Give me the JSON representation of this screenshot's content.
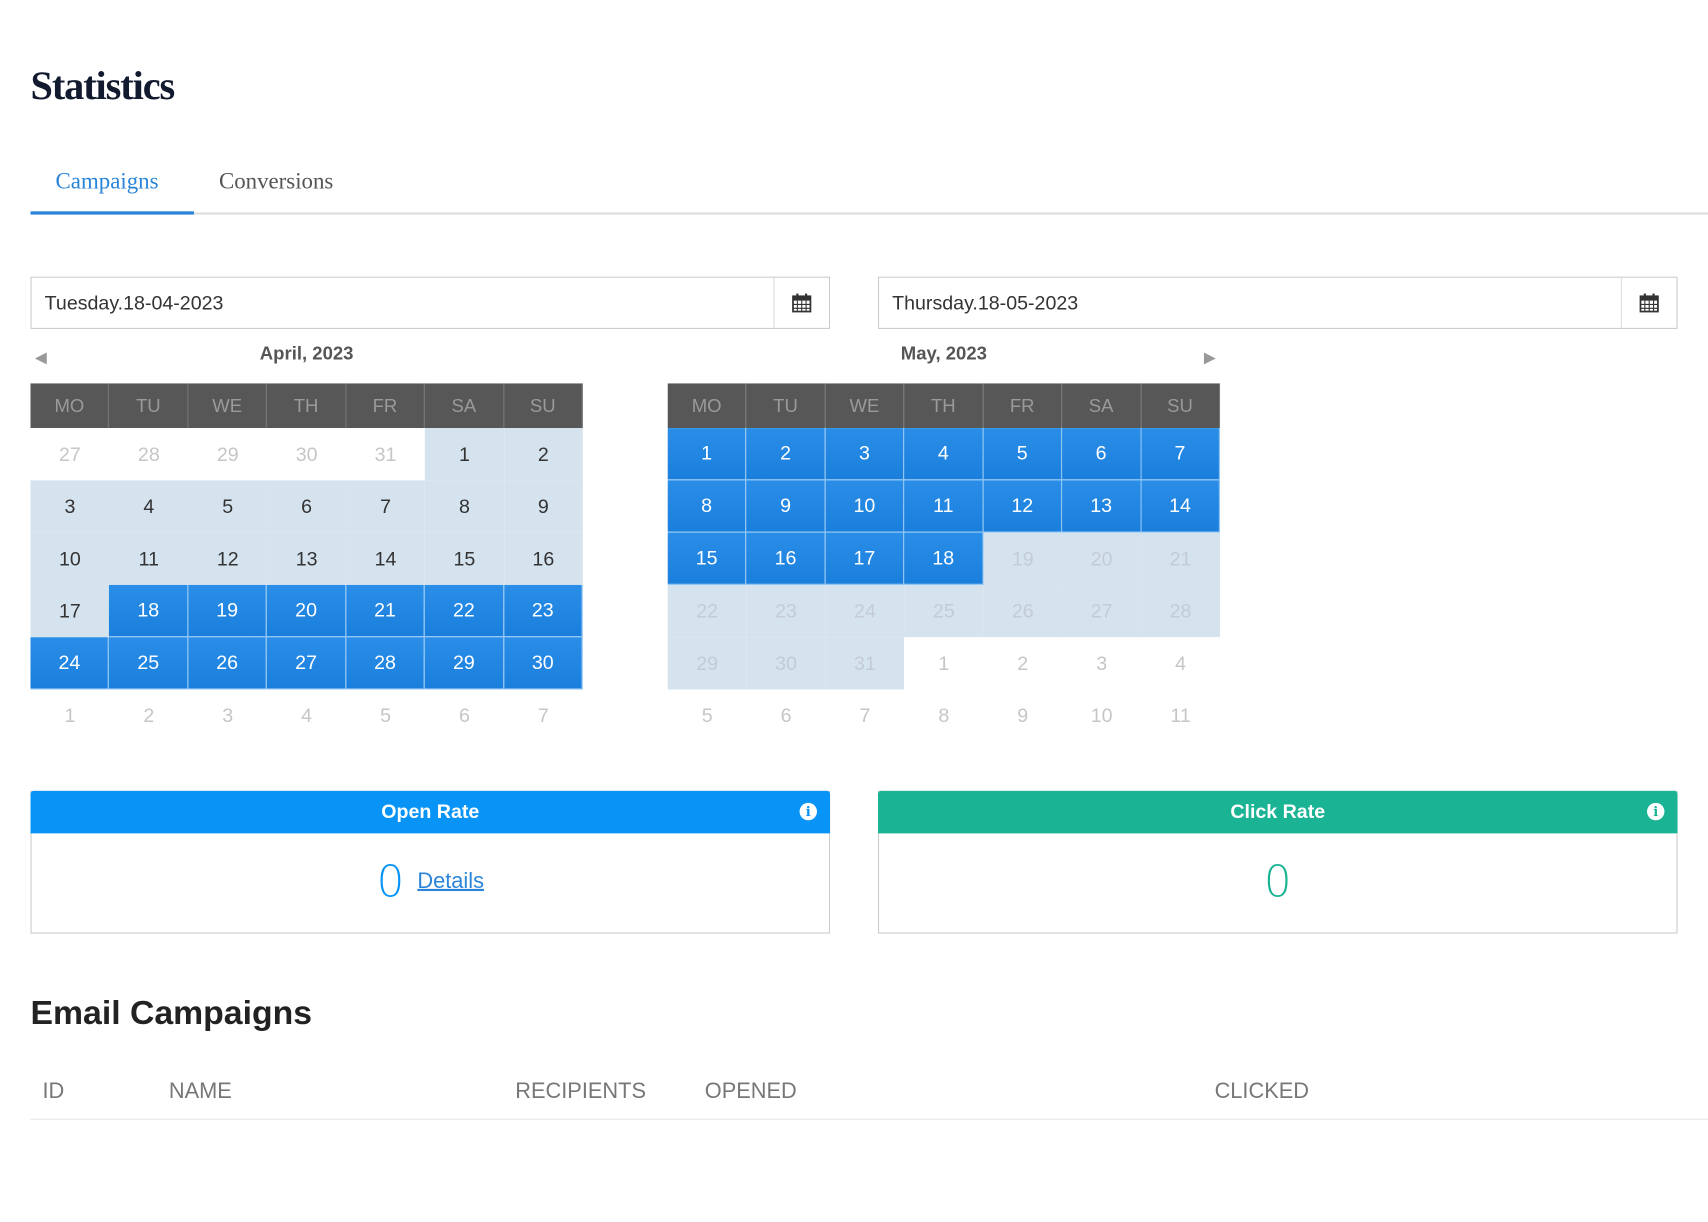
{
  "page": {
    "title": "Statistics"
  },
  "tabs": [
    {
      "label": "Campaigns",
      "active": true
    },
    {
      "label": "Conversions",
      "active": false
    }
  ],
  "date_from": {
    "value": "Tuesday.18-04-2023",
    "icon": "calendar-icon"
  },
  "date_to": {
    "value": "Thursday.18-05-2023",
    "icon": "calendar-icon"
  },
  "weekdays": [
    "MO",
    "TU",
    "WE",
    "TH",
    "FR",
    "SA",
    "SU"
  ],
  "calendars": [
    {
      "month": "April, 2023",
      "nav": "prev-arrow-icon",
      "days": [
        [
          "27",
          "other"
        ],
        [
          "28",
          "other"
        ],
        [
          "29",
          "other"
        ],
        [
          "30",
          "other"
        ],
        [
          "31",
          "other"
        ],
        [
          "1",
          "range"
        ],
        [
          "2",
          "range"
        ],
        [
          "3",
          "range"
        ],
        [
          "4",
          "range"
        ],
        [
          "5",
          "range"
        ],
        [
          "6",
          "range"
        ],
        [
          "7",
          "range"
        ],
        [
          "8",
          "range"
        ],
        [
          "9",
          "range"
        ],
        [
          "10",
          "range"
        ],
        [
          "11",
          "range"
        ],
        [
          "12",
          "range"
        ],
        [
          "13",
          "range"
        ],
        [
          "14",
          "range"
        ],
        [
          "15",
          "range"
        ],
        [
          "16",
          "range"
        ],
        [
          "17",
          "range"
        ],
        [
          "18",
          "selected"
        ],
        [
          "19",
          "selected"
        ],
        [
          "20",
          "selected"
        ],
        [
          "21",
          "selected"
        ],
        [
          "22",
          "selected"
        ],
        [
          "23",
          "selected"
        ],
        [
          "24",
          "selected"
        ],
        [
          "25",
          "selected"
        ],
        [
          "26",
          "selected"
        ],
        [
          "27",
          "selected"
        ],
        [
          "28",
          "selected"
        ],
        [
          "29",
          "selected"
        ],
        [
          "30",
          "selected"
        ],
        [
          "1",
          "other"
        ],
        [
          "2",
          "other"
        ],
        [
          "3",
          "other"
        ],
        [
          "4",
          "other"
        ],
        [
          "5",
          "other"
        ],
        [
          "6",
          "other"
        ],
        [
          "7",
          "other"
        ]
      ]
    },
    {
      "month": "May, 2023",
      "nav": "next-arrow-icon",
      "days": [
        [
          "1",
          "selected"
        ],
        [
          "2",
          "selected"
        ],
        [
          "3",
          "selected"
        ],
        [
          "4",
          "selected"
        ],
        [
          "5",
          "selected"
        ],
        [
          "6",
          "selected"
        ],
        [
          "7",
          "selected"
        ],
        [
          "8",
          "selected"
        ],
        [
          "9",
          "selected"
        ],
        [
          "10",
          "selected"
        ],
        [
          "11",
          "selected"
        ],
        [
          "12",
          "selected"
        ],
        [
          "13",
          "selected"
        ],
        [
          "14",
          "selected"
        ],
        [
          "15",
          "selected"
        ],
        [
          "16",
          "selected"
        ],
        [
          "17",
          "selected"
        ],
        [
          "18",
          "selected"
        ],
        [
          "19",
          "disabled"
        ],
        [
          "20",
          "disabled"
        ],
        [
          "21",
          "disabled"
        ],
        [
          "22",
          "disabled"
        ],
        [
          "23",
          "disabled"
        ],
        [
          "24",
          "disabled"
        ],
        [
          "25",
          "disabled"
        ],
        [
          "26",
          "disabled"
        ],
        [
          "27",
          "disabled"
        ],
        [
          "28",
          "disabled"
        ],
        [
          "29",
          "disabled"
        ],
        [
          "30",
          "disabled"
        ],
        [
          "31",
          "disabled"
        ],
        [
          "1",
          "other"
        ],
        [
          "2",
          "other"
        ],
        [
          "3",
          "other"
        ],
        [
          "4",
          "other"
        ],
        [
          "5",
          "other"
        ],
        [
          "6",
          "other"
        ],
        [
          "7",
          "other"
        ],
        [
          "8",
          "other"
        ],
        [
          "9",
          "other"
        ],
        [
          "10",
          "other"
        ],
        [
          "11",
          "other"
        ]
      ]
    }
  ],
  "cards": {
    "open_rate": {
      "title": "Open Rate",
      "value": "0",
      "link": "Details",
      "color": "#0894f7",
      "info": "i"
    },
    "click_rate": {
      "title": "Click Rate",
      "value": "0",
      "color": "#1ab394",
      "info": "i"
    }
  },
  "campaigns": {
    "title": "Email Campaigns",
    "columns": [
      "ID",
      "NAME",
      "RECIPIENTS",
      "OPENED",
      "CLICKED"
    ]
  }
}
